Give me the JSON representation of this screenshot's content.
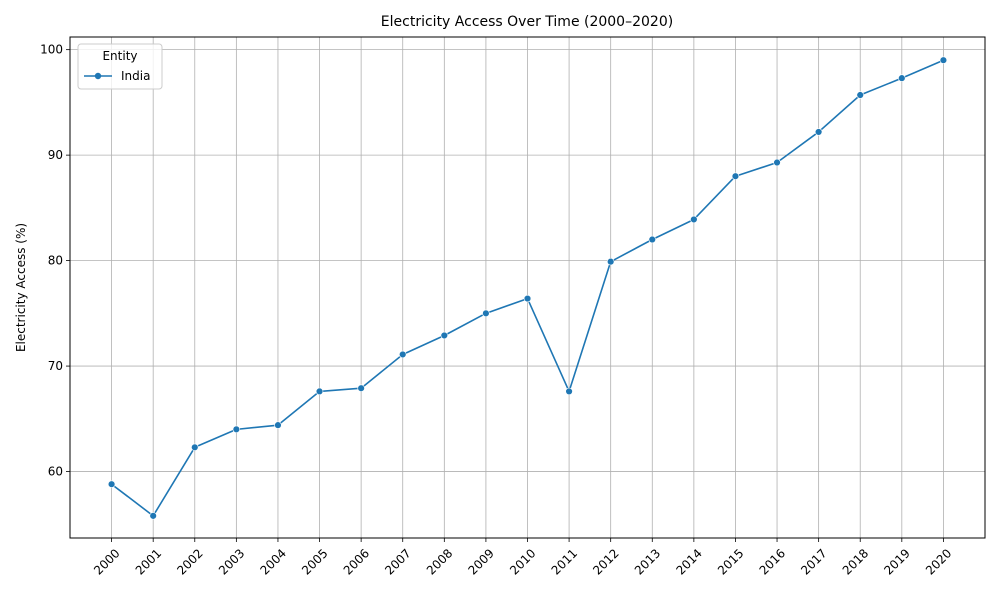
{
  "chart_data": {
    "type": "line",
    "title": "Electricity Access Over Time (2000–2020)",
    "xlabel": "",
    "ylabel": "Electricity Access (%)",
    "x": [
      "2000",
      "2001",
      "2002",
      "2003",
      "2004",
      "2005",
      "2006",
      "2007",
      "2008",
      "2009",
      "2010",
      "2011",
      "2012",
      "2013",
      "2014",
      "2015",
      "2016",
      "2017",
      "2018",
      "2019",
      "2020"
    ],
    "yticks": [
      60,
      70,
      80,
      90,
      100
    ],
    "ylim": [
      53.7,
      101.2
    ],
    "grid": true,
    "legend": {
      "title": "Entity",
      "placement": "top-left"
    },
    "series": [
      {
        "name": "India",
        "color": "#1f77b4",
        "marker": "circle",
        "values": [
          58.8,
          55.8,
          62.3,
          64.0,
          64.4,
          67.6,
          67.9,
          71.1,
          72.9,
          75.0,
          76.4,
          67.6,
          79.9,
          82.0,
          83.9,
          88.0,
          89.3,
          92.2,
          95.7,
          97.3,
          99.0
        ]
      }
    ]
  }
}
